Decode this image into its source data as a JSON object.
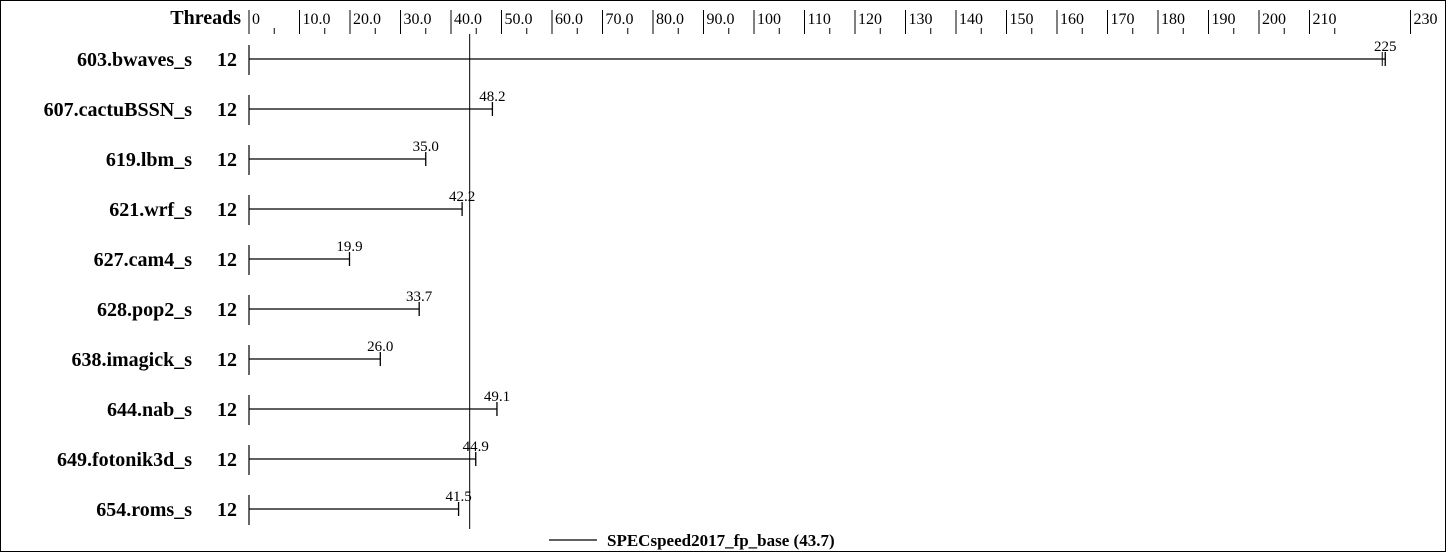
{
  "chart_data": {
    "type": "bar",
    "header_label": "Threads",
    "categories": [
      "603.bwaves_s",
      "607.cactuBSSN_s",
      "619.lbm_s",
      "621.wrf_s",
      "627.cam4_s",
      "628.pop2_s",
      "638.imagick_s",
      "644.nab_s",
      "649.fotonik3d_s",
      "654.roms_s"
    ],
    "threads": [
      "12",
      "12",
      "12",
      "12",
      "12",
      "12",
      "12",
      "12",
      "12",
      "12"
    ],
    "values": [
      225,
      48.2,
      35.0,
      42.2,
      19.9,
      33.7,
      26.0,
      49.1,
      44.9,
      41.5
    ],
    "value_labels": [
      "225",
      "48.2",
      "35.0",
      "42.2",
      "19.9",
      "33.7",
      "26.0",
      "49.1",
      "44.9",
      "41.5"
    ],
    "xlim": [
      0,
      230
    ],
    "tick_labels": [
      "0",
      "10.0",
      "20.0",
      "30.0",
      "40.0",
      "50.0",
      "60.0",
      "70.0",
      "80.0",
      "90.0",
      "100",
      "110",
      "120",
      "130",
      "140",
      "150",
      "160",
      "170",
      "180",
      "190",
      "200",
      "210",
      "230"
    ],
    "tick_values": [
      0,
      10,
      20,
      30,
      40,
      50,
      60,
      70,
      80,
      90,
      100,
      110,
      120,
      130,
      140,
      150,
      160,
      170,
      180,
      190,
      200,
      210,
      230
    ],
    "reference": {
      "label": "SPECspeed2017_fp_base (43.7)",
      "value": 43.7
    },
    "grid": false,
    "legend_position": "bottom-center"
  }
}
